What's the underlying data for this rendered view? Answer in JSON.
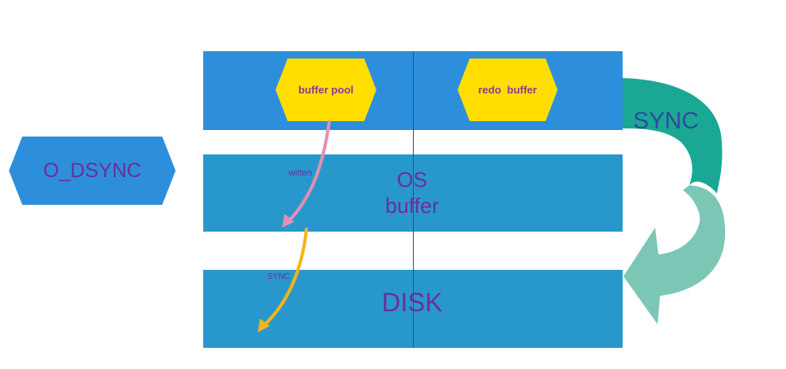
{
  "left_badge": {
    "label": "O_DSYNC"
  },
  "memory": {
    "buffer_pool_label": "buffer pool",
    "redo_buffer_label": "redo  buffer"
  },
  "os_buffer": {
    "line1": "OS",
    "line2": "buffer"
  },
  "disk": {
    "label": "DISK"
  },
  "arrows": {
    "written_label": "witten",
    "sync_small_label": "SYNC",
    "sync_big_label": "SYNC"
  },
  "colors": {
    "memory_band": "#2d8fdb",
    "layer_band": "#2898cc",
    "hexagon_fill": "#ffde00",
    "written_arrow": "#e58fb3",
    "sync_arrow": "#f4b41a",
    "big_arrow_top": "#1aa894",
    "big_arrow_bottom": "#7cc6b6",
    "text_purple": "#6b2f99"
  }
}
